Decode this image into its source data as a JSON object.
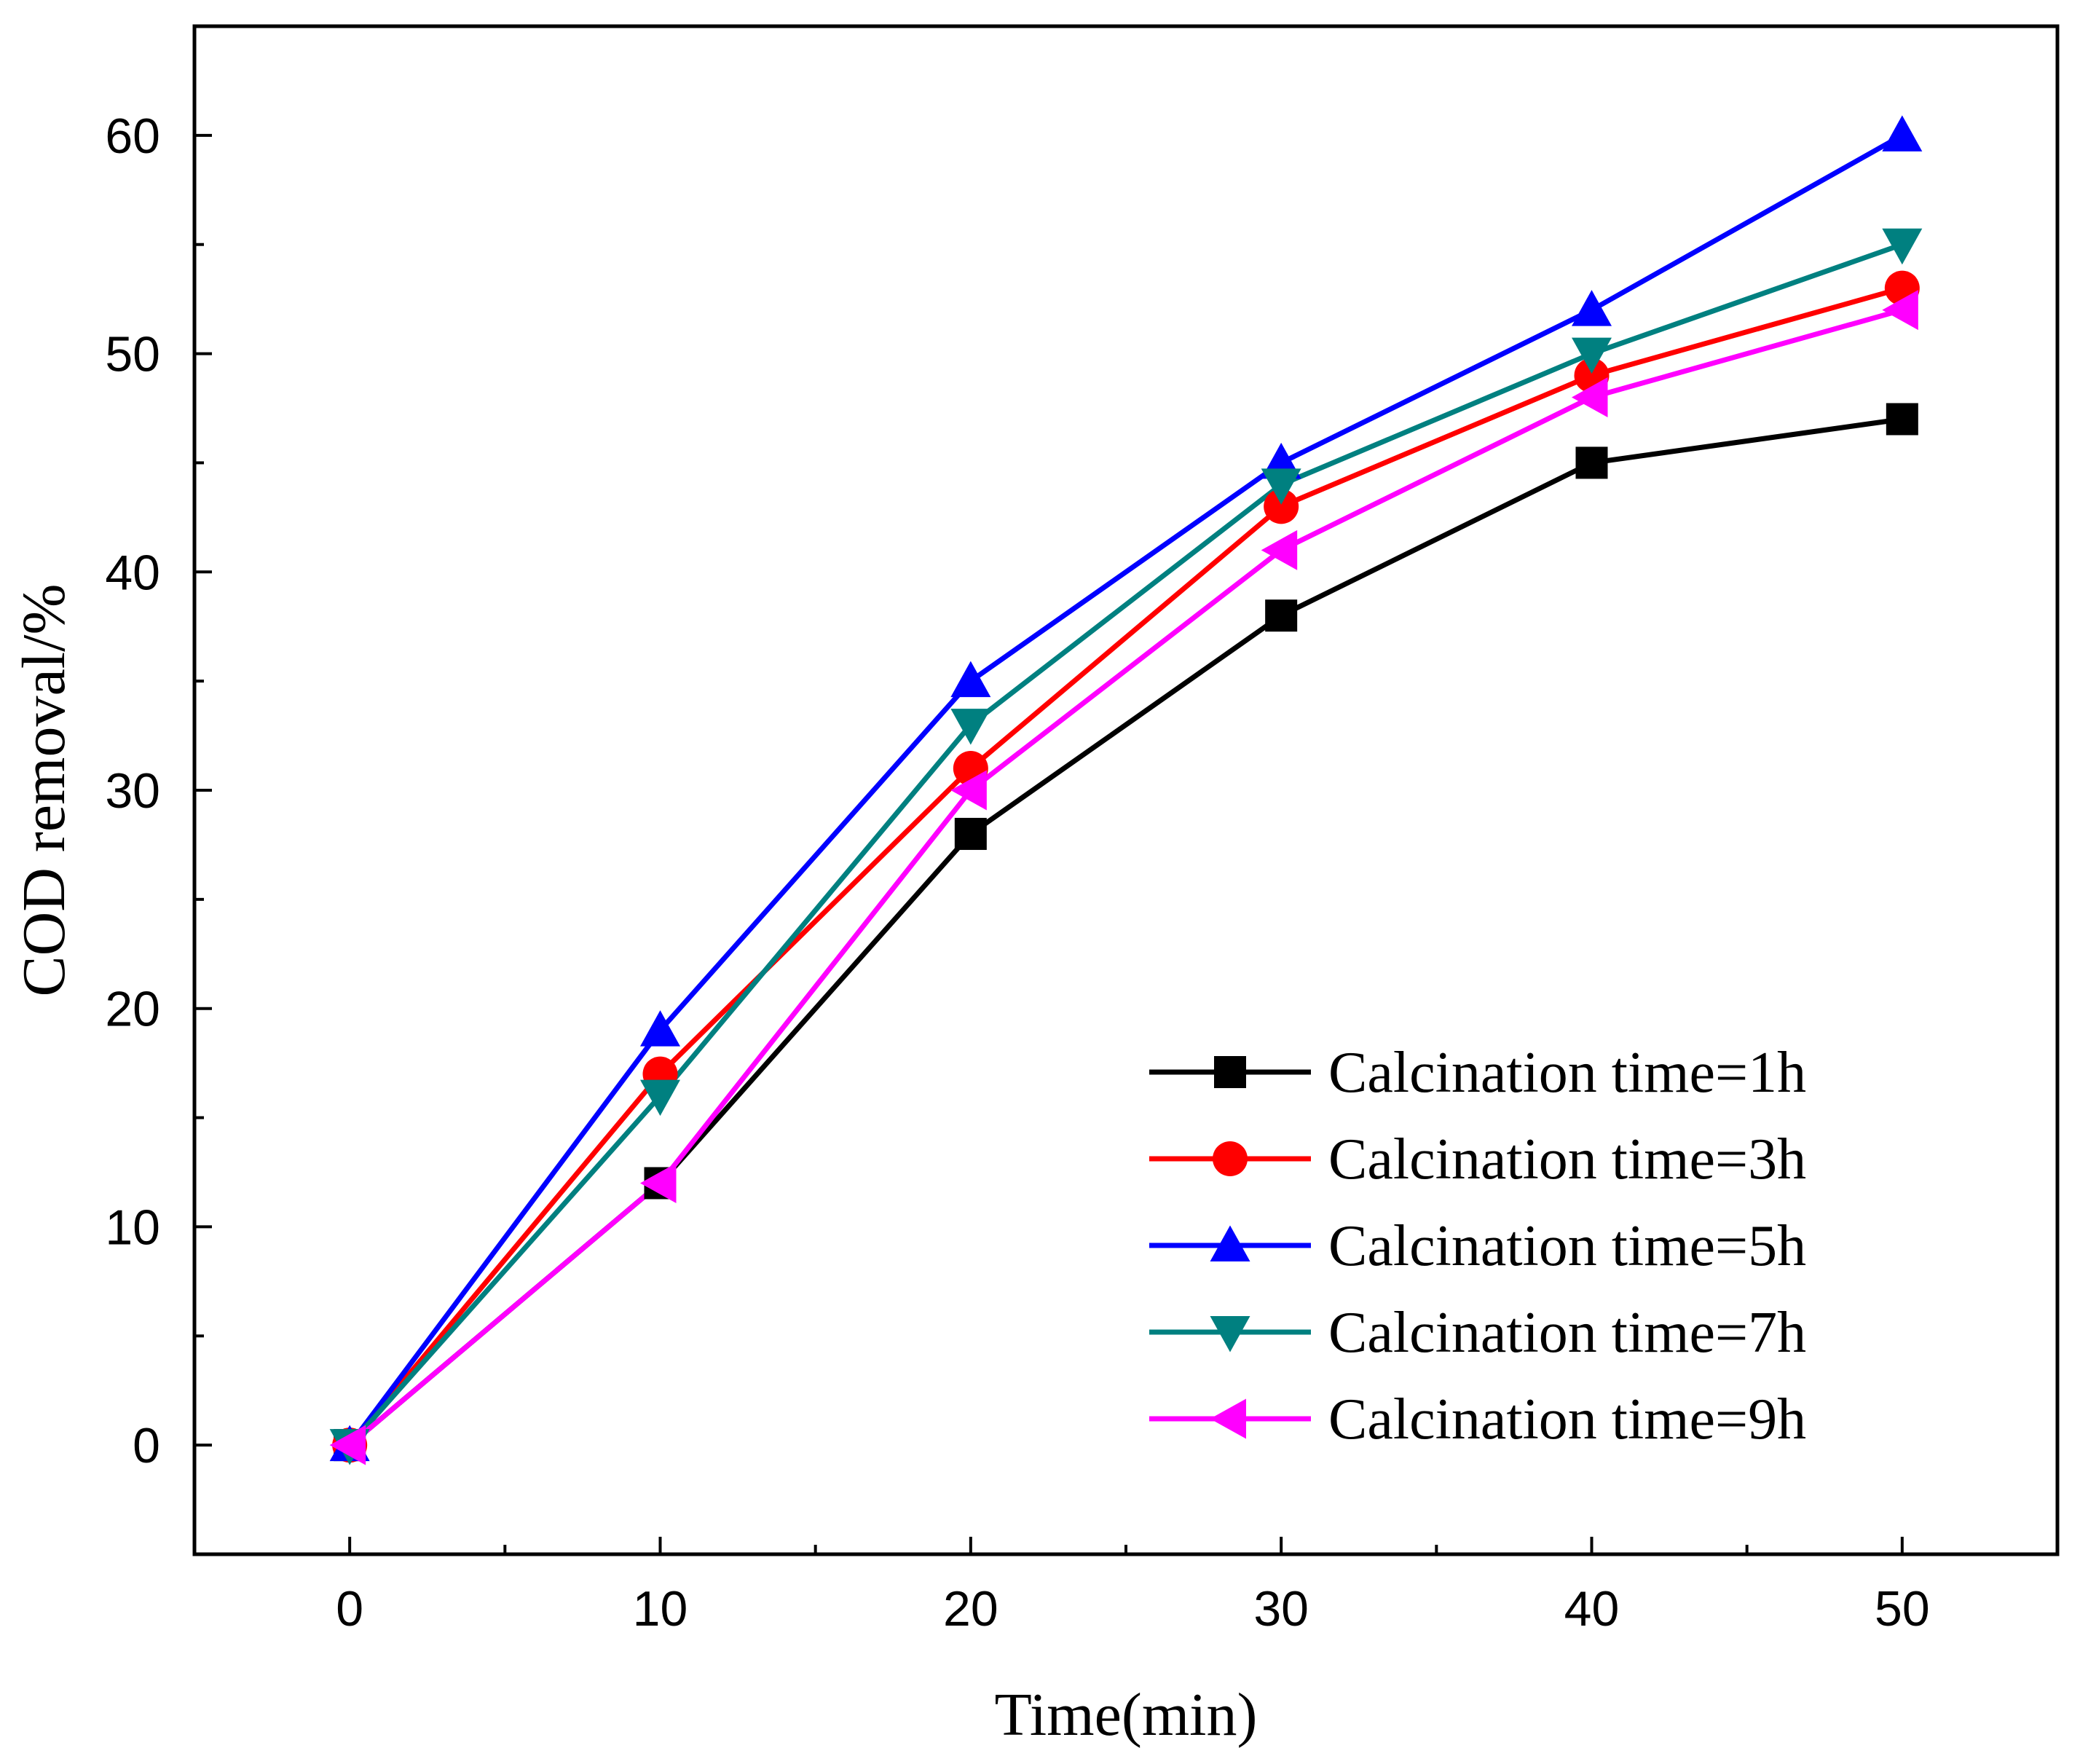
{
  "chart_data": {
    "type": "line",
    "title": "",
    "xlabel": "Time(min)",
    "ylabel": "COD removal/%",
    "xlim": [
      -5,
      55
    ],
    "ylim": [
      -5,
      65
    ],
    "x_ticks": [
      0,
      10,
      20,
      30,
      40,
      50
    ],
    "y_ticks": [
      0,
      10,
      20,
      30,
      40,
      50,
      60
    ],
    "x_minor_ticks": [
      5,
      15,
      25,
      35,
      45
    ],
    "y_minor_ticks": [
      5,
      15,
      25,
      35,
      45,
      55
    ],
    "grid": false,
    "legend_position": "bottom-right",
    "x": [
      0,
      10,
      20,
      30,
      40,
      50
    ],
    "series": [
      {
        "name": "Calcination time=1h",
        "color": "#000000",
        "marker": "square",
        "values": [
          0,
          12,
          28,
          38,
          45,
          47
        ]
      },
      {
        "name": "Calcination time=3h",
        "color": "#ff0000",
        "marker": "circle",
        "values": [
          0,
          17,
          31,
          43,
          49,
          53
        ]
      },
      {
        "name": "Calcination time=5h",
        "color": "#0000ff",
        "marker": "triangle-up",
        "values": [
          0,
          19,
          35,
          45,
          52,
          60
        ]
      },
      {
        "name": "Calcination time=7h",
        "color": "#008080",
        "marker": "triangle-down",
        "values": [
          0,
          16,
          33,
          44,
          50,
          55
        ]
      },
      {
        "name": "Calcination time=9h",
        "color": "#ff00ff",
        "marker": "triangle-left",
        "values": [
          0,
          12,
          30,
          41,
          48,
          52
        ]
      }
    ]
  }
}
